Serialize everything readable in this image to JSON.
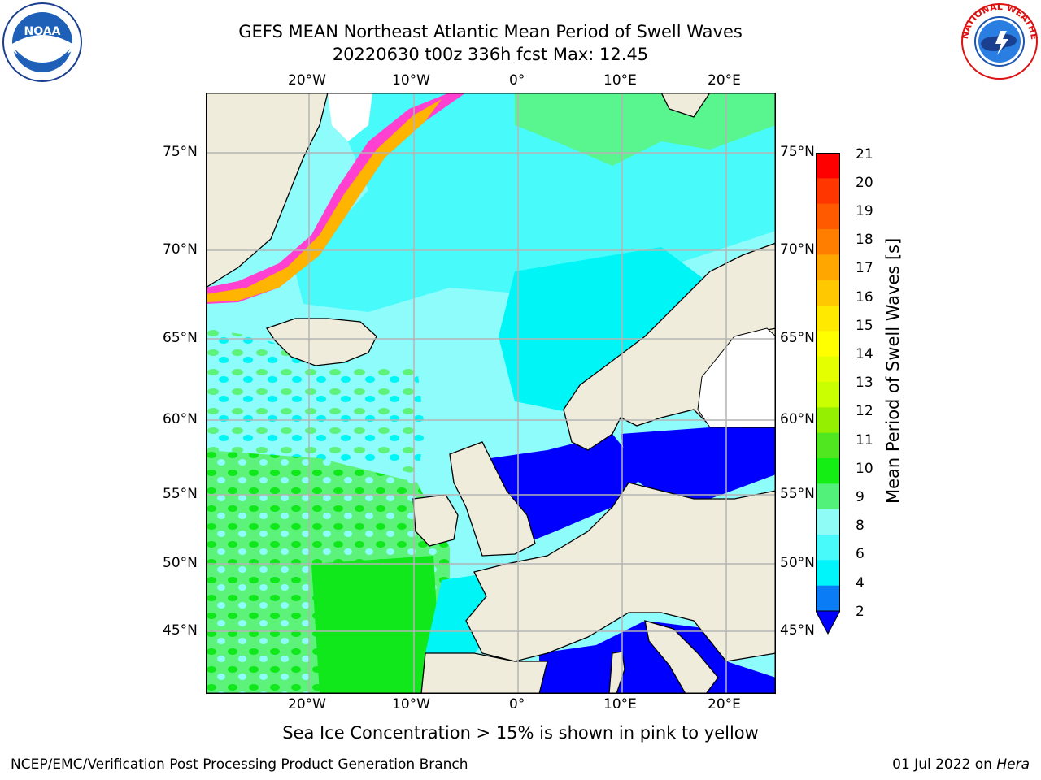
{
  "header": {
    "title_line1": "GEFS MEAN Northeast Atlantic Mean Period of Swell Waves",
    "title_line2": "20220630 t00z 336h fcst   Max: 12.45"
  },
  "map": {
    "lon_ticks": [
      "20°W",
      "10°W",
      "0°",
      "10°E",
      "20°E"
    ],
    "lat_ticks_left": [
      "75°N",
      "70°N",
      "65°N",
      "60°N",
      "55°N",
      "50°N",
      "45°N"
    ],
    "lat_ticks_right": [
      "75°N",
      "70°N",
      "65°N",
      "60°N",
      "55°N",
      "50°N",
      "45°N"
    ],
    "colors": {
      "land": "#efecdc",
      "grid": "#b4b4b4",
      "coast": "#000000",
      "cyan_light": "#8ffcfc",
      "cyan": "#00f5f7",
      "green_light": "#5df37a",
      "green": "#10e81c",
      "blue": "#0000ff",
      "blue_mid": "#0a7cf4"
    }
  },
  "colorbar": {
    "title": "Mean Period of Swell Waves [s]",
    "labels": [
      "21",
      "20",
      "19",
      "18",
      "17",
      "16",
      "15",
      "14",
      "13",
      "12",
      "11",
      "10",
      "9",
      "8",
      "6",
      "4",
      "2"
    ],
    "colors_top_to_bottom": [
      "#ff0000",
      "#ff3600",
      "#ff5a00",
      "#ff7e00",
      "#ffa600",
      "#ffc800",
      "#ffe900",
      "#ffff00",
      "#e4ff00",
      "#c9ff00",
      "#94f000",
      "#50e620",
      "#14ee14",
      "#52f27a",
      "#8ffcf5",
      "#48fafa",
      "#00f5fa",
      "#0a7cf5",
      "#0000ff"
    ]
  },
  "caption": "Sea Ice Concentration > 15% is shown in pink to yellow",
  "footer": {
    "left": "NCEP/EMC/Verification Post Processing Product Generation Branch",
    "right_date": "01 Jul 2022 on ",
    "right_host": "Hera"
  },
  "logos": {
    "noaa_text": "NOAA",
    "nws_text": "NATIONAL WEATHER SERVICE"
  }
}
